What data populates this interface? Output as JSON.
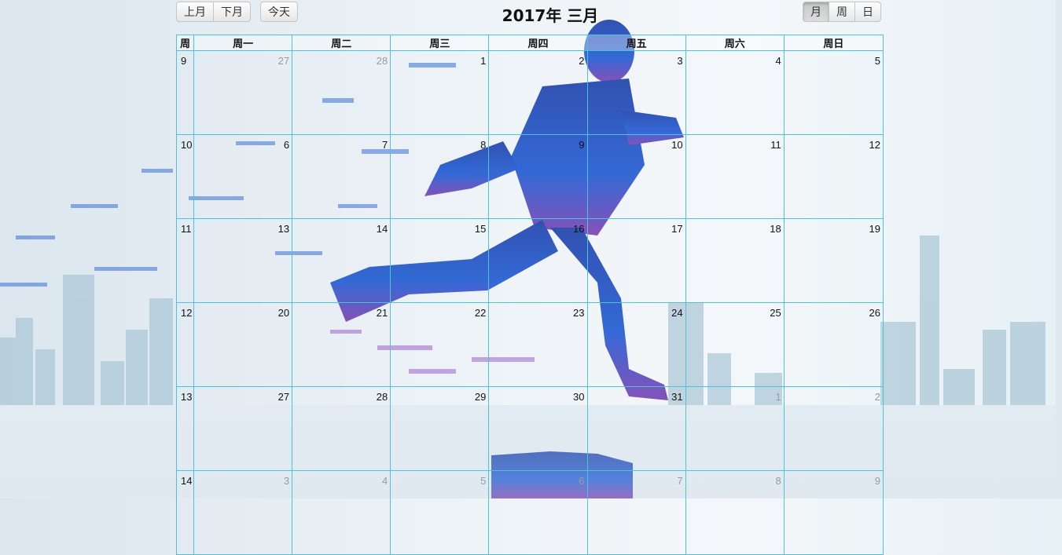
{
  "nav": {
    "prev_label": "上月",
    "next_label": "下月",
    "today_label": "今天"
  },
  "title": "2017年 三月",
  "views": {
    "month_label": "月",
    "week_label": "周",
    "day_label": "日",
    "active": "month"
  },
  "calendar": {
    "week_header": "周",
    "weekdays": [
      "周一",
      "周二",
      "周三",
      "周四",
      "周五",
      "周六",
      "周日"
    ],
    "weeks": [
      {
        "week": "9",
        "days": [
          {
            "n": "27",
            "other": true
          },
          {
            "n": "28",
            "other": true
          },
          {
            "n": "1"
          },
          {
            "n": "2"
          },
          {
            "n": "3"
          },
          {
            "n": "4"
          },
          {
            "n": "5"
          }
        ]
      },
      {
        "week": "10",
        "days": [
          {
            "n": "6"
          },
          {
            "n": "7"
          },
          {
            "n": "8"
          },
          {
            "n": "9"
          },
          {
            "n": "10"
          },
          {
            "n": "11"
          },
          {
            "n": "12"
          }
        ]
      },
      {
        "week": "11",
        "days": [
          {
            "n": "13"
          },
          {
            "n": "14"
          },
          {
            "n": "15"
          },
          {
            "n": "16"
          },
          {
            "n": "17"
          },
          {
            "n": "18"
          },
          {
            "n": "19"
          }
        ]
      },
      {
        "week": "12",
        "days": [
          {
            "n": "20"
          },
          {
            "n": "21"
          },
          {
            "n": "22"
          },
          {
            "n": "23"
          },
          {
            "n": "24"
          },
          {
            "n": "25"
          },
          {
            "n": "26"
          }
        ]
      },
      {
        "week": "13",
        "days": [
          {
            "n": "27"
          },
          {
            "n": "28"
          },
          {
            "n": "29"
          },
          {
            "n": "30"
          },
          {
            "n": "31"
          },
          {
            "n": "1",
            "other": true
          },
          {
            "n": "2",
            "other": true
          }
        ]
      },
      {
        "week": "14",
        "days": [
          {
            "n": "3",
            "other": true
          },
          {
            "n": "4",
            "other": true
          },
          {
            "n": "5",
            "other": true
          },
          {
            "n": "6",
            "other": true
          },
          {
            "n": "7",
            "other": true
          },
          {
            "n": "8",
            "other": true
          },
          {
            "n": "9",
            "other": true
          }
        ]
      }
    ]
  },
  "colors": {
    "grid": "#4cc3d9",
    "runner_dark": "#0b2a8c",
    "runner_mid": "#2f6fd6",
    "runner_purple": "#7a3fb0"
  }
}
